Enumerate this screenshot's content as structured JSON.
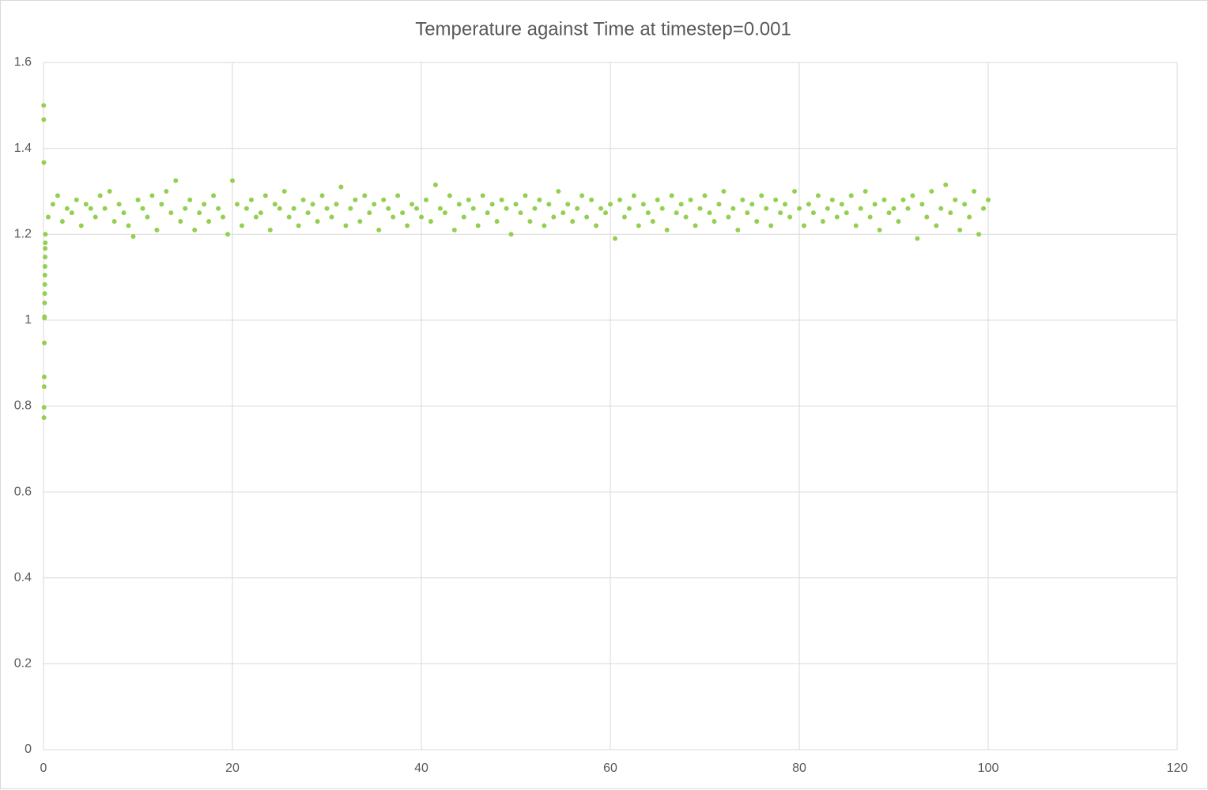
{
  "chart_data": {
    "type": "scatter",
    "title": "Temperature  against Time at timestep=0.001",
    "color": "#92d050",
    "xlim": [
      0,
      120
    ],
    "xticks": [
      0,
      20,
      40,
      60,
      80,
      100,
      120
    ],
    "ylim": [
      0,
      1.6
    ],
    "yticks": [
      0,
      0.2,
      0.4,
      0.6,
      0.8,
      1,
      1.2,
      1.4,
      1.6
    ],
    "grid": true,
    "x": [
      0.02,
      0.03,
      0.04,
      0.05,
      0.06,
      0.07,
      0.08,
      0.09,
      0.1,
      0.11,
      0.12,
      0.13,
      0.14,
      0.15,
      0.16,
      0.17,
      0.18,
      0.19,
      0.2,
      0.5,
      1,
      1.5,
      2,
      2.5,
      3,
      3.5,
      4,
      4.5,
      5,
      5.5,
      6,
      6.5,
      7,
      7.5,
      8,
      8.5,
      9,
      9.5,
      10,
      10.5,
      11,
      11.5,
      12,
      12.5,
      13,
      13.5,
      14,
      14.5,
      15,
      15.5,
      16,
      16.5,
      17,
      17.5,
      18,
      18.5,
      19,
      19.5,
      20,
      20.5,
      21,
      21.5,
      22,
      22.5,
      23,
      23.5,
      24,
      24.5,
      25,
      25.5,
      26,
      26.5,
      27,
      27.5,
      28,
      28.5,
      29,
      29.5,
      30,
      30.5,
      31,
      31.5,
      32,
      32.5,
      33,
      33.5,
      34,
      34.5,
      35,
      35.5,
      36,
      36.5,
      37,
      37.5,
      38,
      38.5,
      39,
      39.5,
      40,
      40.5,
      41,
      41.5,
      42,
      42.5,
      43,
      43.5,
      44,
      44.5,
      45,
      45.5,
      46,
      46.5,
      47,
      47.5,
      48,
      48.5,
      49,
      49.5,
      50,
      50.5,
      51,
      51.5,
      52,
      52.5,
      53,
      53.5,
      54,
      54.5,
      55,
      55.5,
      56,
      56.5,
      57,
      57.5,
      58,
      58.5,
      59,
      59.5,
      60,
      60.5,
      61,
      61.5,
      62,
      62.5,
      63,
      63.5,
      64,
      64.5,
      65,
      65.5,
      66,
      66.5,
      67,
      67.5,
      68,
      68.5,
      69,
      69.5,
      70,
      70.5,
      71,
      71.5,
      72,
      72.5,
      73,
      73.5,
      74,
      74.5,
      75,
      75.5,
      76,
      76.5,
      77,
      77.5,
      78,
      78.5,
      79,
      79.5,
      80,
      80.5,
      81,
      81.5,
      82,
      82.5,
      83,
      83.5,
      84,
      84.5,
      85,
      85.5,
      86,
      86.5,
      87,
      87.5,
      88,
      88.5,
      89,
      89.5,
      90,
      90.5,
      91,
      91.5,
      92,
      92.5,
      93,
      93.5,
      94,
      94.5,
      95,
      95.5,
      96,
      96.5,
      97,
      97.5,
      98,
      98.5,
      99,
      99.5,
      100
    ],
    "values": [
      1.5,
      1.467,
      1.367,
      0.773,
      0.797,
      0.845,
      0.868,
      0.947,
      1.005,
      1.008,
      1.04,
      1.062,
      1.083,
      1.105,
      1.125,
      1.147,
      1.167,
      1.18,
      1.2,
      1.24,
      1.27,
      1.29,
      1.23,
      1.26,
      1.25,
      1.28,
      1.22,
      1.27,
      1.26,
      1.24,
      1.29,
      1.26,
      1.3,
      1.23,
      1.27,
      1.25,
      1.22,
      1.195,
      1.28,
      1.26,
      1.24,
      1.29,
      1.21,
      1.27,
      1.3,
      1.25,
      1.325,
      1.23,
      1.26,
      1.28,
      1.21,
      1.25,
      1.27,
      1.23,
      1.29,
      1.26,
      1.24,
      1.2,
      1.325,
      1.27,
      1.22,
      1.26,
      1.28,
      1.24,
      1.25,
      1.29,
      1.21,
      1.27,
      1.26,
      1.3,
      1.24,
      1.26,
      1.22,
      1.28,
      1.25,
      1.27,
      1.23,
      1.29,
      1.26,
      1.24,
      1.27,
      1.31,
      1.22,
      1.26,
      1.28,
      1.23,
      1.29,
      1.25,
      1.27,
      1.21,
      1.28,
      1.26,
      1.24,
      1.29,
      1.25,
      1.22,
      1.27,
      1.26,
      1.24,
      1.28,
      1.23,
      1.315,
      1.26,
      1.25,
      1.29,
      1.21,
      1.27,
      1.24,
      1.28,
      1.26,
      1.22,
      1.29,
      1.25,
      1.27,
      1.23,
      1.28,
      1.26,
      1.2,
      1.27,
      1.25,
      1.29,
      1.23,
      1.26,
      1.28,
      1.22,
      1.27,
      1.24,
      1.3,
      1.25,
      1.27,
      1.23,
      1.26,
      1.29,
      1.24,
      1.28,
      1.22,
      1.26,
      1.25,
      1.27,
      1.19,
      1.28,
      1.24,
      1.26,
      1.29,
      1.22,
      1.27,
      1.25,
      1.23,
      1.28,
      1.26,
      1.21,
      1.29,
      1.25,
      1.27,
      1.24,
      1.28,
      1.22,
      1.26,
      1.29,
      1.25,
      1.23,
      1.27,
      1.3,
      1.24,
      1.26,
      1.21,
      1.28,
      1.25,
      1.27,
      1.23,
      1.29,
      1.26,
      1.22,
      1.28,
      1.25,
      1.27,
      1.24,
      1.3,
      1.26,
      1.22,
      1.27,
      1.25,
      1.29,
      1.23,
      1.26,
      1.28,
      1.24,
      1.27,
      1.25,
      1.29,
      1.22,
      1.26,
      1.3,
      1.24,
      1.27,
      1.21,
      1.28,
      1.25,
      1.26,
      1.23,
      1.28,
      1.26,
      1.29,
      1.19,
      1.27,
      1.24,
      1.3,
      1.22,
      1.26,
      1.315,
      1.25,
      1.28,
      1.21,
      1.27,
      1.24,
      1.3,
      1.2,
      1.26,
      1.28
    ]
  }
}
